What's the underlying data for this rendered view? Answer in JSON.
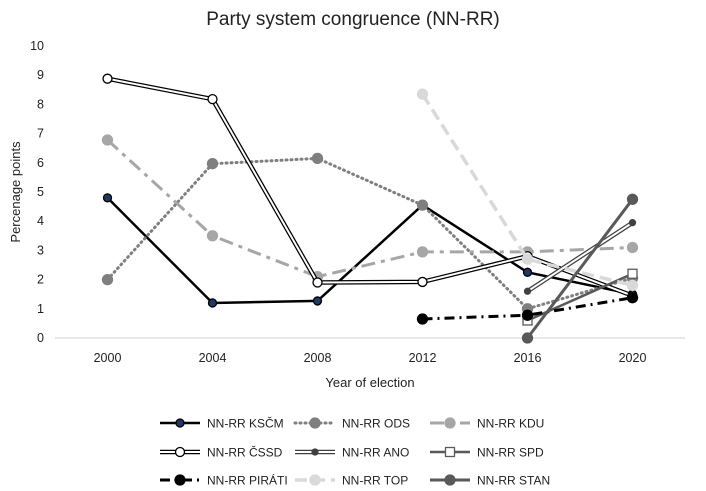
{
  "chart_data": {
    "type": "line",
    "title": "Party system congruence (NN-RR)",
    "xlabel": "Year of election",
    "ylabel": "Percenage points",
    "x": [
      2000,
      2004,
      2008,
      2012,
      2016,
      2020
    ],
    "ylim": [
      0,
      10
    ],
    "yticks": [
      0,
      1,
      2,
      3,
      4,
      5,
      6,
      7,
      8,
      9,
      10
    ],
    "grid": false,
    "legend_position": "bottom",
    "series": [
      {
        "name": "NN-RR KSČM",
        "color": "#000000",
        "values": [
          4.8,
          1.2,
          1.27,
          4.55,
          2.25,
          1.5
        ]
      },
      {
        "name": "NN-RR ODS",
        "color": "#7f7f7f",
        "values": [
          2.0,
          5.97,
          6.15,
          4.55,
          1.0,
          2.05
        ]
      },
      {
        "name": "NN-RR KDU",
        "color": "#a6a6a6",
        "values": [
          6.78,
          3.5,
          2.1,
          2.95,
          2.95,
          3.1
        ]
      },
      {
        "name": "NN-RR ČSSD",
        "color": "#000000",
        "values": [
          8.88,
          8.18,
          1.9,
          1.92,
          2.8,
          1.45
        ]
      },
      {
        "name": "NN-RR ANO",
        "color": "#404040",
        "values": [
          null,
          null,
          null,
          null,
          1.6,
          3.95
        ]
      },
      {
        "name": "NN-RR SPD",
        "color": "#595959",
        "values": [
          null,
          null,
          null,
          null,
          0.6,
          2.2
        ]
      },
      {
        "name": "NN-RR PIRÁTI",
        "color": "#000000",
        "values": [
          null,
          null,
          null,
          0.65,
          0.78,
          1.38
        ]
      },
      {
        "name": "NN-RR TOP",
        "color": "#d9d9d9",
        "values": [
          null,
          null,
          null,
          8.35,
          2.7,
          1.8
        ]
      },
      {
        "name": "NN-RR STAN",
        "color": "#595959",
        "values": [
          null,
          null,
          null,
          null,
          0.0,
          4.75
        ]
      }
    ]
  }
}
